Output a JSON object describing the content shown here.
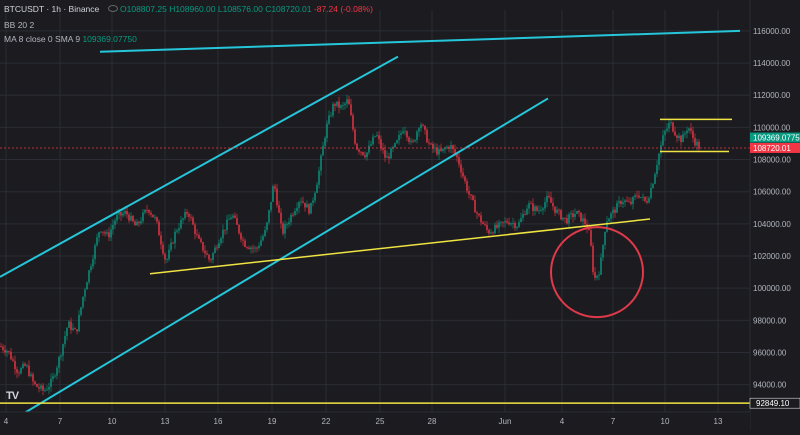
{
  "legend": {
    "symbol": "BTCUSDT · 1h · Binance",
    "open": "O108807.25",
    "high": "H108960.00",
    "low": "L108576.00",
    "close": "C108720.01",
    "change": "-87.24 (-0.08%)",
    "bb": "BB 20 2",
    "ma_label": "MA 8 close 0 SMA 9",
    "ma_value": "109369.07750"
  },
  "colors": {
    "background": "#1c1c20",
    "up": "#089981",
    "down": "#f23645",
    "channel": "#26c6da",
    "support": "#f0e442",
    "circle": "#e0394a",
    "price_axis_text": "#b2b5be"
  },
  "chart_data": {
    "type": "candlestick",
    "x_labels": [
      "4",
      "7",
      "10",
      "13",
      "16",
      "19",
      "22",
      "25",
      "28",
      "Jun",
      "4",
      "7",
      "10",
      "13"
    ],
    "y_ticks": [
      94000,
      96000,
      98000,
      100000,
      102000,
      104000,
      106000,
      108000,
      110000,
      112000,
      114000,
      116000
    ],
    "y_tick_labels": [
      "94000.00",
      "96000.00",
      "98000.00",
      "100000.00",
      "102000.00",
      "104000.00",
      "106000.00",
      "108000.00",
      "110000.00",
      "112000.00",
      "114000.00",
      "116000.00"
    ],
    "ylim": [
      92300,
      117300
    ],
    "price_path": [
      [
        0,
        96400
      ],
      [
        8,
        96100
      ],
      [
        18,
        94800
      ],
      [
        26,
        95200
      ],
      [
        34,
        94000
      ],
      [
        44,
        93600
      ],
      [
        52,
        94200
      ],
      [
        60,
        95800
      ],
      [
        68,
        97800
      ],
      [
        76,
        97200
      ],
      [
        84,
        99800
      ],
      [
        92,
        101800
      ],
      [
        100,
        103800
      ],
      [
        108,
        103200
      ],
      [
        116,
        104400
      ],
      [
        126,
        104700
      ],
      [
        136,
        103800
      ],
      [
        148,
        105000
      ],
      [
        156,
        104200
      ],
      [
        166,
        101600
      ],
      [
        176,
        103600
      ],
      [
        188,
        104800
      ],
      [
        198,
        103000
      ],
      [
        210,
        101700
      ],
      [
        220,
        103200
      ],
      [
        232,
        104600
      ],
      [
        244,
        102800
      ],
      [
        256,
        102400
      ],
      [
        266,
        103600
      ],
      [
        274,
        106600
      ],
      [
        282,
        103400
      ],
      [
        290,
        104400
      ],
      [
        300,
        105600
      ],
      [
        310,
        104800
      ],
      [
        318,
        106900
      ],
      [
        326,
        109900
      ],
      [
        334,
        111500
      ],
      [
        342,
        111200
      ],
      [
        348,
        111700
      ],
      [
        356,
        108800
      ],
      [
        366,
        108300
      ],
      [
        376,
        109600
      ],
      [
        386,
        108000
      ],
      [
        396,
        108900
      ],
      [
        404,
        110100
      ],
      [
        412,
        108800
      ],
      [
        420,
        110400
      ],
      [
        430,
        108800
      ],
      [
        440,
        108400
      ],
      [
        450,
        108900
      ],
      [
        458,
        108000
      ],
      [
        468,
        106000
      ],
      [
        478,
        104500
      ],
      [
        488,
        103500
      ],
      [
        498,
        103800
      ],
      [
        508,
        104200
      ],
      [
        518,
        103900
      ],
      [
        528,
        105200
      ],
      [
        538,
        104800
      ],
      [
        548,
        105600
      ],
      [
        556,
        104800
      ],
      [
        566,
        104200
      ],
      [
        576,
        104700
      ],
      [
        586,
        104000
      ],
      [
        590,
        103200
      ],
      [
        594,
        100500
      ],
      [
        600,
        101200
      ],
      [
        606,
        104200
      ],
      [
        614,
        104800
      ],
      [
        622,
        105500
      ],
      [
        630,
        105200
      ],
      [
        638,
        105900
      ],
      [
        646,
        105300
      ],
      [
        652,
        106400
      ],
      [
        658,
        108100
      ],
      [
        664,
        109600
      ],
      [
        670,
        110300
      ],
      [
        676,
        109600
      ],
      [
        682,
        109200
      ],
      [
        688,
        110100
      ],
      [
        694,
        109200
      ],
      [
        700,
        108720
      ]
    ],
    "current_price_label": "108720.01",
    "ma_price_label": "109369.07750",
    "bottom_level_label": "92849.10",
    "drawings": {
      "channel_lines": [
        [
          [
            0,
            100700
          ],
          [
            398,
            114400
          ]
        ],
        [
          [
            10,
            91700
          ],
          [
            548,
            111800
          ]
        ],
        [
          [
            100,
            114700
          ],
          [
            740,
            116000
          ]
        ]
      ],
      "support_lines": [
        [
          [
            150,
            100900
          ],
          [
            650,
            104300
          ]
        ],
        [
          [
            0,
            92849.1
          ],
          [
            750,
            92849.1
          ]
        ]
      ],
      "range_lines": [
        [
          [
            660,
            110500
          ],
          [
            732,
            110500
          ]
        ],
        [
          [
            660,
            108500
          ],
          [
            729,
            108500
          ]
        ]
      ],
      "highlight_circle": {
        "cx": 597,
        "cy": 101000,
        "rx": 46,
        "ry": 45
      }
    }
  }
}
